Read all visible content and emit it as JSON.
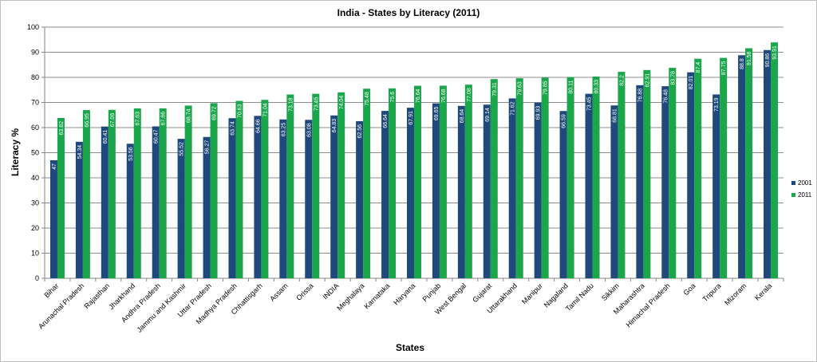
{
  "chart_data": {
    "type": "bar",
    "title": "India - States by Literacy (2011)",
    "xlabel": "States",
    "ylabel": "Literacy %",
    "ylim": [
      0,
      100
    ],
    "ytick_step": 10,
    "grid": true,
    "legend_position": "right",
    "categories": [
      "Bihar",
      "Arunachal Pradesh",
      "Rajasthan",
      "Jharkhand",
      "Andhra Pradesh",
      "Jammu and Kashmir",
      "Uttar Pradesh",
      "Madhya Pradesh",
      "Chhattisgarh",
      "Assam",
      "Orissa",
      "INDIA",
      "Meghalaya",
      "Karnataka",
      "Haryana",
      "Punjab",
      "West Bengal",
      "Gujarat",
      "Uttarakhand",
      "Manipur",
      "Nagaland",
      "Tamil Nadu",
      "Sikkim",
      "Maharashtra",
      "Himachal Pradesh",
      "Goa",
      "Tripura",
      "Mizoram",
      "Kerala"
    ],
    "series": [
      {
        "name": "2001",
        "color": "#1f497d",
        "values": [
          47,
          54.34,
          60.41,
          53.56,
          60.47,
          55.52,
          56.27,
          63.74,
          64.66,
          63.25,
          63.08,
          64.83,
          62.56,
          66.64,
          67.91,
          69.65,
          68.64,
          69.14,
          71.62,
          69.93,
          66.59,
          73.45,
          68.81,
          76.88,
          76.48,
          82.01,
          73.19,
          88.8,
          90.86
        ]
      },
      {
        "name": "2011",
        "color": "#1aa64a",
        "values": [
          63.82,
          66.95,
          67.06,
          67.63,
          67.66,
          68.74,
          69.72,
          70.63,
          71.04,
          73.18,
          73.45,
          74.04,
          75.48,
          75.6,
          76.64,
          76.68,
          77.08,
          79.31,
          79.63,
          79.85,
          80.11,
          80.33,
          82.2,
          82.91,
          83.78,
          87.4,
          87.75,
          91.58,
          93.91
        ]
      }
    ]
  }
}
